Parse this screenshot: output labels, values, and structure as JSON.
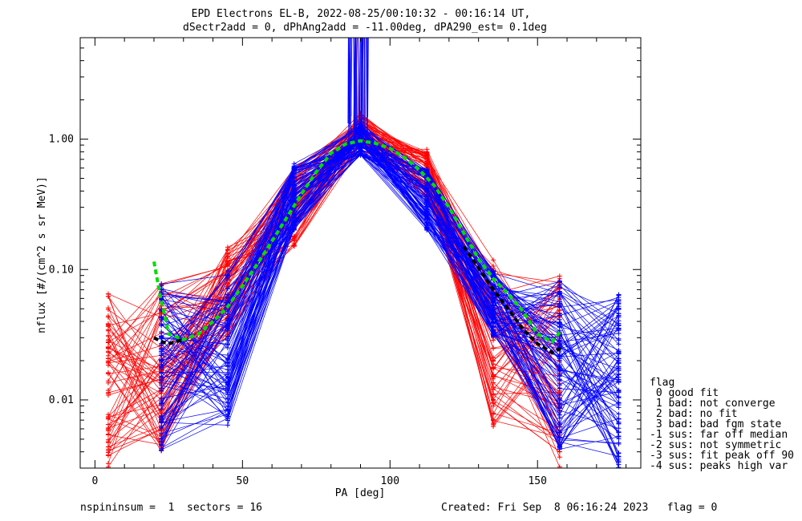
{
  "chart_data": {
    "type": "line",
    "title_line1": "EPD Electrons EL-B, 2022-08-25/00:10:32 - 00:16:14 UT,",
    "title_line2": "dSectr2add = 0, dPhAng2add = -11.00deg, dPA290_est=   0.1deg",
    "xlabel": "PA [deg]",
    "ylabel": "nflux [#/(cm^2 s sr MeV)]",
    "xlim": [
      -5,
      185
    ],
    "ylim": [
      0.003,
      6
    ],
    "yscale": "log",
    "x_ticks": [
      0,
      50,
      100,
      150
    ],
    "x_tick_labels": [
      "0",
      "50",
      "100",
      "150"
    ],
    "y_ticks": [
      0.01,
      0.1,
      1.0
    ],
    "y_tick_labels": [
      "0.01",
      "0.10",
      "1.00"
    ],
    "colors": {
      "red_series": "#ff0000",
      "blue_series": "#0000ff",
      "fit": "#00dd00",
      "model": "#000000"
    },
    "red_trace_pa": [
      4.5,
      22.5,
      45,
      67.5,
      90,
      112.5,
      135,
      157.5
    ],
    "blue_trace_pa": [
      22.5,
      45,
      67.5,
      90,
      112.5,
      135,
      157.5,
      177.5
    ],
    "series": [
      {
        "color": "green",
        "style": "dashed",
        "x": [
          20,
          22,
          25,
          30,
          35,
          40,
          45,
          50,
          55,
          60,
          65,
          70,
          75,
          80,
          85,
          90,
          95,
          100,
          105,
          110,
          115,
          120,
          125,
          130,
          135,
          140,
          145,
          150,
          155,
          158
        ],
        "y": [
          0.115,
          0.065,
          0.032,
          0.029,
          0.032,
          0.04,
          0.052,
          0.075,
          0.11,
          0.165,
          0.25,
          0.38,
          0.56,
          0.78,
          0.92,
          0.97,
          0.93,
          0.85,
          0.72,
          0.58,
          0.44,
          0.3,
          0.19,
          0.12,
          0.085,
          0.065,
          0.048,
          0.032,
          0.028,
          0.034
        ]
      },
      {
        "color": "black",
        "style": "dashed",
        "x": [
          20,
          22.5,
          25,
          30
        ],
        "y": [
          0.03,
          0.028,
          0.027,
          0.029
        ]
      },
      {
        "color": "black",
        "style": "dashed",
        "x": [
          125,
          135,
          140,
          145,
          150,
          155,
          158
        ],
        "y": [
          0.15,
          0.07,
          0.05,
          0.035,
          0.027,
          0.023,
          0.025
        ]
      }
    ],
    "legend": {
      "title": "flag",
      "entries": [
        " 0 good fit",
        " 1 bad: not converge",
        " 2 bad: no fit",
        " 3 bad: bad fgm state",
        "-1 sus: far off median",
        "-2 sus: not symmetric",
        "-3 sus: fit peak off 90",
        "-4 sus: peaks high var"
      ]
    }
  },
  "footer": {
    "left": "nspininsum =  1  sectors = 16",
    "right": "Created: Fri Sep  8 06:16:24 2023   flag = 0"
  }
}
